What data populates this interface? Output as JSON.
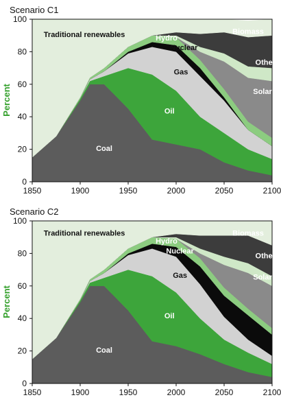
{
  "colors": {
    "coal": "#5c5c5c",
    "oil": "#3da53b",
    "gas": "#d2d2d2",
    "nuclear": "#0b0b0b",
    "hydro": "#8ccc80",
    "solar": "#8a8a8a",
    "other": "#cfe8c7",
    "biomass": "#3c3c3c",
    "traditional": "#e3eedd",
    "ylabel": "#34a02c"
  },
  "chart_data": [
    {
      "type": "area",
      "title": "Scenario C1",
      "ylabel": "Percent",
      "xlim": [
        1850,
        2100
      ],
      "ylim": [
        0,
        100
      ],
      "xticks": [
        1850,
        1900,
        1950,
        2000,
        2050,
        2100
      ],
      "yticks": [
        0,
        20,
        40,
        60,
        80,
        100
      ],
      "x": [
        1850,
        1875,
        1900,
        1910,
        1925,
        1950,
        1975,
        2000,
        2025,
        2050,
        2075,
        2100
      ],
      "series": [
        {
          "name": "Coal",
          "key": "coal",
          "values": [
            15,
            28,
            50,
            60,
            60,
            45,
            26,
            23,
            20,
            12,
            7,
            4
          ]
        },
        {
          "name": "Oil",
          "key": "oil",
          "values": [
            0,
            0,
            1,
            2,
            5,
            25,
            40,
            33,
            20,
            18,
            13,
            10
          ]
        },
        {
          "name": "Gas",
          "key": "gas",
          "values": [
            0,
            0,
            0,
            1,
            3,
            9,
            17,
            24,
            25,
            20,
            12,
            8
          ]
        },
        {
          "name": "Nuclear",
          "key": "nuclear",
          "values": [
            0,
            0,
            0,
            0,
            0,
            1,
            3,
            4,
            5,
            2,
            0,
            0
          ]
        },
        {
          "name": "Hydro",
          "key": "hydro",
          "values": [
            0,
            0,
            1,
            1,
            2,
            3,
            4,
            5,
            5,
            5,
            5,
            5
          ]
        },
        {
          "name": "Solar",
          "key": "solar",
          "values": [
            0,
            0,
            0,
            0,
            0,
            0,
            0,
            0,
            5,
            17,
            27,
            35
          ]
        },
        {
          "name": "Other",
          "key": "other",
          "values": [
            0,
            0,
            0,
            0,
            0,
            0,
            0,
            1,
            3,
            5,
            7,
            8
          ]
        },
        {
          "name": "Biomass",
          "key": "biomass",
          "values": [
            0,
            0,
            0,
            0,
            0,
            0,
            0,
            2,
            8,
            13,
            18,
            20
          ]
        },
        {
          "name": "Traditional renewables",
          "key": "traditional",
          "values": [
            85,
            72,
            48,
            36,
            30,
            17,
            10,
            8,
            9,
            8,
            10,
            10
          ]
        }
      ],
      "labels": [
        {
          "text": "Traditional renewables",
          "x": 1862,
          "y": 89,
          "style": "dark",
          "anchor": "start"
        },
        {
          "text": "Biomass",
          "x": 2075,
          "y": 91,
          "style": "light",
          "anchor": "middle"
        },
        {
          "text": "Hydro",
          "x": 1990,
          "y": 87,
          "style": "light",
          "anchor": "middle"
        },
        {
          "text": "Nuclear",
          "x": 2008,
          "y": 81,
          "style": "dark",
          "anchor": "middle"
        },
        {
          "text": "Other",
          "x": 2093,
          "y": 72,
          "style": "light",
          "anchor": "middle"
        },
        {
          "text": "Gas",
          "x": 2005,
          "y": 66,
          "style": "dark",
          "anchor": "middle"
        },
        {
          "text": "Solar",
          "x": 2090,
          "y": 54,
          "style": "light",
          "anchor": "middle"
        },
        {
          "text": "Oil",
          "x": 1993,
          "y": 42,
          "style": "light",
          "anchor": "middle"
        },
        {
          "text": "Coal",
          "x": 1925,
          "y": 19,
          "style": "light",
          "anchor": "middle"
        }
      ]
    },
    {
      "type": "area",
      "title": "Scenario C2",
      "ylabel": "Percent",
      "xlim": [
        1850,
        2100
      ],
      "ylim": [
        0,
        100
      ],
      "xticks": [
        1850,
        1900,
        1950,
        2000,
        2050,
        2100
      ],
      "yticks": [
        0,
        20,
        40,
        60,
        80,
        100
      ],
      "x": [
        1850,
        1875,
        1900,
        1910,
        1925,
        1950,
        1975,
        2000,
        2025,
        2050,
        2075,
        2100
      ],
      "series": [
        {
          "name": "Coal",
          "key": "coal",
          "values": [
            15,
            28,
            50,
            60,
            60,
            45,
            26,
            23,
            18,
            12,
            7,
            4
          ]
        },
        {
          "name": "Oil",
          "key": "oil",
          "values": [
            0,
            0,
            1,
            2,
            5,
            25,
            40,
            33,
            22,
            15,
            12,
            8
          ]
        },
        {
          "name": "Gas",
          "key": "gas",
          "values": [
            0,
            0,
            0,
            1,
            3,
            9,
            17,
            22,
            21,
            14,
            8,
            5
          ]
        },
        {
          "name": "Nuclear",
          "key": "nuclear",
          "values": [
            0,
            0,
            0,
            0,
            0,
            1,
            3,
            6,
            11,
            13,
            15,
            13
          ]
        },
        {
          "name": "Hydro",
          "key": "hydro",
          "values": [
            0,
            0,
            1,
            1,
            2,
            3,
            4,
            5,
            5,
            5,
            4,
            4
          ]
        },
        {
          "name": "Solar",
          "key": "solar",
          "values": [
            0,
            0,
            0,
            0,
            0,
            0,
            0,
            0,
            3,
            14,
            22,
            26
          ]
        },
        {
          "name": "Other",
          "key": "other",
          "values": [
            0,
            0,
            0,
            0,
            0,
            0,
            0,
            1,
            3,
            5,
            6,
            6
          ]
        },
        {
          "name": "Biomass",
          "key": "biomass",
          "values": [
            0,
            0,
            0,
            0,
            0,
            0,
            0,
            2,
            8,
            13,
            17,
            19
          ]
        },
        {
          "name": "Traditional renewables",
          "key": "traditional",
          "values": [
            85,
            72,
            48,
            36,
            30,
            17,
            10,
            8,
            9,
            9,
            9,
            15
          ]
        }
      ],
      "labels": [
        {
          "text": "Traditional renewables",
          "x": 1862,
          "y": 91,
          "style": "dark",
          "anchor": "start"
        },
        {
          "text": "Biomass",
          "x": 2075,
          "y": 91,
          "style": "light",
          "anchor": "middle"
        },
        {
          "text": "Hydro",
          "x": 1990,
          "y": 86,
          "style": "light",
          "anchor": "middle"
        },
        {
          "text": "Nuclear",
          "x": 2004,
          "y": 80,
          "style": "light",
          "anchor": "middle"
        },
        {
          "text": "Other",
          "x": 2093,
          "y": 77,
          "style": "light",
          "anchor": "middle"
        },
        {
          "text": "Gas",
          "x": 2004,
          "y": 65,
          "style": "dark",
          "anchor": "middle"
        },
        {
          "text": "Solar",
          "x": 2090,
          "y": 64,
          "style": "light",
          "anchor": "middle"
        },
        {
          "text": "Oil",
          "x": 1993,
          "y": 40,
          "style": "light",
          "anchor": "middle"
        },
        {
          "text": "Coal",
          "x": 1925,
          "y": 19,
          "style": "light",
          "anchor": "middle"
        }
      ]
    }
  ]
}
